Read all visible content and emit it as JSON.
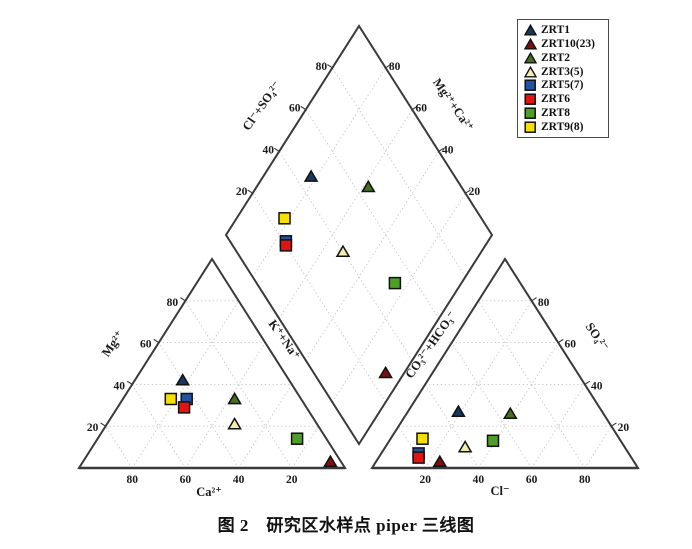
{
  "figure": {
    "caption": "图 2　研究区水样点 piper 三线图"
  },
  "chart_data": {
    "type": "scatter",
    "variant": "piper-trilinear-diagram",
    "units": "percent of meq/L, every ternary axis spans 0–100",
    "axis_range": [
      0,
      100
    ],
    "tick_values": [
      20,
      40,
      60,
      80
    ],
    "grid": true,
    "axes": {
      "cation_triangle": {
        "bottom_label": "Ca²⁺",
        "left_label": "Mg²⁺",
        "bottom_tick_labels": [
          "80",
          "60",
          "40",
          "20"
        ],
        "left_tick_labels": [
          "20",
          "40",
          "60",
          "80"
        ]
      },
      "anion_triangle": {
        "bottom_label": "Cl⁻",
        "right_label": "SO₄²⁻",
        "bottom_tick_labels": [
          "20",
          "40",
          "60",
          "80"
        ],
        "right_tick_labels": [
          "20",
          "40",
          "60",
          "80"
        ]
      },
      "diamond": {
        "upper_left_label": "Cl⁻+SO₄²⁻",
        "upper_right_label": "Mg²⁺+Ca²⁺",
        "lower_left_label": "K⁺+Na⁺",
        "lower_right_label": "CO₃²⁻+HCO₃⁻",
        "tick_labels": [
          "20",
          "40",
          "60",
          "80"
        ]
      }
    },
    "legend": {
      "position": "top-right",
      "border": true,
      "entries": [
        "ZRT1",
        "ZRT10(23)",
        "ZRT2",
        "ZRT3(5)",
        "ZRT5(7)",
        "ZRT6",
        "ZRT8",
        "ZRT9(8)"
      ]
    },
    "series": [
      {
        "name": "ZRT1",
        "marker": "triangle",
        "color": "#16395d",
        "cation": {
          "ca": 40,
          "mg": 42,
          "na_k": 18
        },
        "anion": {
          "co3_hco3": 54,
          "so4": 27,
          "cl": 19
        },
        "diamond": {
          "cl_so4": 46,
          "mg_ca": 82
        }
      },
      {
        "name": "ZRT10(23)",
        "marker": "triangle",
        "color": "#7b0f12",
        "cation": {
          "ca": 4,
          "mg": 3,
          "na_k": 93
        },
        "anion": {
          "co3_hco3": 73,
          "so4": 3,
          "cl": 24
        },
        "diamond": {
          "cl_so4": 27,
          "mg_ca": 7
        }
      },
      {
        "name": "ZRT2",
        "marker": "triangle",
        "color": "#45711f",
        "cation": {
          "ca": 25,
          "mg": 33,
          "na_k": 42
        },
        "anion": {
          "co3_hco3": 35,
          "so4": 26,
          "cl": 39
        },
        "diamond": {
          "cl_so4": 65,
          "mg_ca": 58
        }
      },
      {
        "name": "ZRT3(5)",
        "marker": "triangle",
        "color": "#f2efae",
        "cation": {
          "ca": 31,
          "mg": 21,
          "na_k": 48
        },
        "anion": {
          "co3_hco3": 60,
          "so4": 10,
          "cl": 30
        },
        "diamond": {
          "cl_so4": 40,
          "mg_ca": 52
        }
      },
      {
        "name": "ZRT5(7)",
        "marker": "square",
        "color": "#2153a1",
        "cation": {
          "ca": 43,
          "mg": 33,
          "na_k": 24
        },
        "anion": {
          "co3_hco3": 79,
          "so4": 7,
          "cl": 14
        },
        "diamond": {
          "cl_so4": 21,
          "mg_ca": 76
        }
      },
      {
        "name": "ZRT6",
        "marker": "square",
        "color": "#e11414",
        "cation": {
          "ca": 46,
          "mg": 29,
          "na_k": 25
        },
        "anion": {
          "co3_hco3": 80,
          "so4": 5,
          "cl": 15
        },
        "diamond": {
          "cl_so4": 20,
          "mg_ca": 75
        }
      },
      {
        "name": "ZRT8",
        "marker": "square",
        "color": "#4f9e28",
        "cation": {
          "ca": 11,
          "mg": 14,
          "na_k": 75
        },
        "anion": {
          "co3_hco3": 48,
          "so4": 13,
          "cl": 39
        },
        "diamond": {
          "cl_so4": 52,
          "mg_ca": 25
        }
      },
      {
        "name": "ZRT9(8)",
        "marker": "square",
        "color": "#f5e000",
        "cation": {
          "ca": 49,
          "mg": 33,
          "na_k": 18
        },
        "anion": {
          "co3_hco3": 74,
          "so4": 14,
          "cl": 12
        },
        "diamond": {
          "cl_so4": 26,
          "mg_ca": 82
        }
      }
    ],
    "style_colors": {
      "edge": "#3a3a3a",
      "grid": "#c2c2c2",
      "marker_outline": "#111111",
      "text": "#1a1a1a"
    }
  }
}
